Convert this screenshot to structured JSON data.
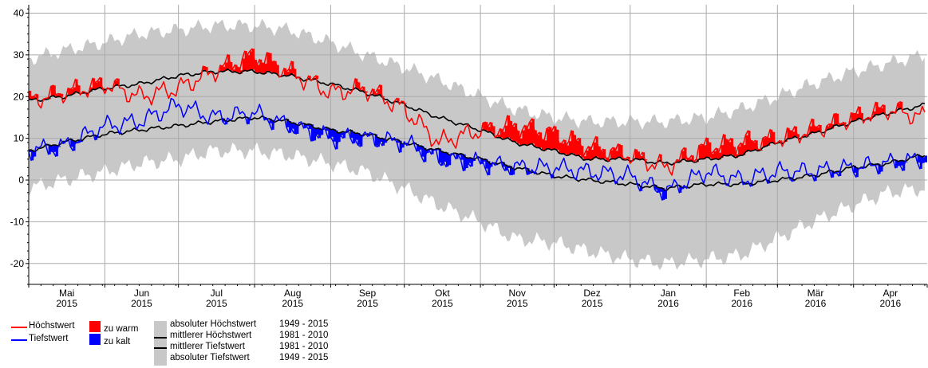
{
  "chart_data": {
    "type": "line",
    "title": "",
    "xlabel": "",
    "ylabel": "",
    "ylim": [
      -25,
      42
    ],
    "y_ticks": [
      -20,
      -10,
      0,
      10,
      20,
      30,
      40
    ],
    "grid": true,
    "legend_placement": "bottom",
    "x_axis": {
      "start": "2015-05-01",
      "months": [
        {
          "month": "Mai",
          "year": "2015"
        },
        {
          "month": "Jun",
          "year": "2015"
        },
        {
          "month": "Jul",
          "year": "2015"
        },
        {
          "month": "Aug",
          "year": "2015"
        },
        {
          "month": "Sep",
          "year": "2015"
        },
        {
          "month": "Okt",
          "year": "2015"
        },
        {
          "month": "Nov",
          "year": "2015"
        },
        {
          "month": "Dez",
          "year": "2015"
        },
        {
          "month": "Jan",
          "year": "2016"
        },
        {
          "month": "Feb",
          "year": "2016"
        },
        {
          "month": "Mär",
          "year": "2016"
        },
        {
          "month": "Apr",
          "year": "2016"
        }
      ]
    },
    "x_key_dates": [
      "2015-05-01",
      "2015-05-15",
      "2015-06-01",
      "2015-06-15",
      "2015-07-01",
      "2015-07-15",
      "2015-08-01",
      "2015-08-15",
      "2015-09-01",
      "2015-09-15",
      "2015-10-01",
      "2015-10-15",
      "2015-11-01",
      "2015-11-15",
      "2015-12-01",
      "2015-12-15",
      "2016-01-01",
      "2016-01-15",
      "2016-02-01",
      "2016-02-15",
      "2016-03-01",
      "2016-03-15",
      "2016-04-01",
      "2016-04-15",
      "2016-04-30"
    ],
    "series": [
      {
        "name": "Höchstwert",
        "color": "#ff0000",
        "values": [
          19,
          21,
          23,
          20,
          22,
          26,
          30,
          26,
          21,
          22,
          17,
          9,
          12,
          13,
          11,
          8,
          6,
          3,
          8,
          9,
          10,
          12,
          15,
          17,
          15
        ]
      },
      {
        "name": "Tiefstwert",
        "color": "#0000ff",
        "values": [
          7,
          8,
          13,
          14,
          18,
          15,
          16,
          13,
          10,
          10,
          9,
          5,
          4,
          3,
          3,
          2,
          1,
          -3,
          2,
          0,
          2,
          2,
          3,
          4,
          5
        ]
      },
      {
        "name": "mittlerer Höchstwert 1981 - 2010",
        "color": "#000000",
        "values": [
          19,
          20,
          22,
          23,
          25,
          26,
          26,
          25,
          23,
          21,
          18,
          15,
          12,
          9,
          7,
          5,
          5,
          4,
          5,
          6,
          9,
          11,
          14,
          16,
          18
        ]
      },
      {
        "name": "mittlerer Tiefstwert 1981 - 2010",
        "color": "#000000",
        "values": [
          7,
          9,
          11,
          12,
          13,
          14,
          15,
          14,
          12,
          11,
          9,
          7,
          5,
          3,
          1,
          0,
          -1,
          -2,
          -1,
          -1,
          0,
          1,
          3,
          4,
          6
        ]
      },
      {
        "name": "absoluter Höchstwert 1949 - 2015",
        "color": "#c8c8c8",
        "values": [
          29,
          31,
          33,
          35,
          36,
          37,
          37,
          36,
          33,
          30,
          27,
          24,
          20,
          17,
          15,
          14,
          14,
          14,
          15,
          17,
          20,
          23,
          26,
          28,
          30
        ]
      },
      {
        "name": "absoluter Tiefstwert 1949 - 2015",
        "color": "#c8c8c8",
        "values": [
          -2,
          0,
          2,
          4,
          5,
          7,
          7,
          6,
          4,
          2,
          -2,
          -6,
          -10,
          -14,
          -15,
          -17,
          -19,
          -20,
          -19,
          -18,
          -14,
          -10,
          -6,
          -3,
          -2
        ]
      }
    ]
  },
  "legend": {
    "max_label": "Höchstwert",
    "min_label": "Tiefstwert",
    "warm_label": "zu warm",
    "cold_label": "zu kalt",
    "abs_max_label": "absoluter Höchstwert",
    "abs_max_years": "1949 - 2015",
    "mean_max_label": "mittlerer Höchstwert",
    "mean_max_years": "1981 - 2010",
    "mean_min_label": "mittlerer Tiefstwert",
    "mean_min_years": "1981 - 2010",
    "abs_min_label": "absoluter Tiefstwert",
    "abs_min_years": "1949 - 2015",
    "colors": {
      "max": "#ff0000",
      "min": "#0000ff",
      "warm": "#ff0000",
      "cold": "#0000ff",
      "band": "#c8c8c8",
      "mean": "#000000"
    }
  }
}
